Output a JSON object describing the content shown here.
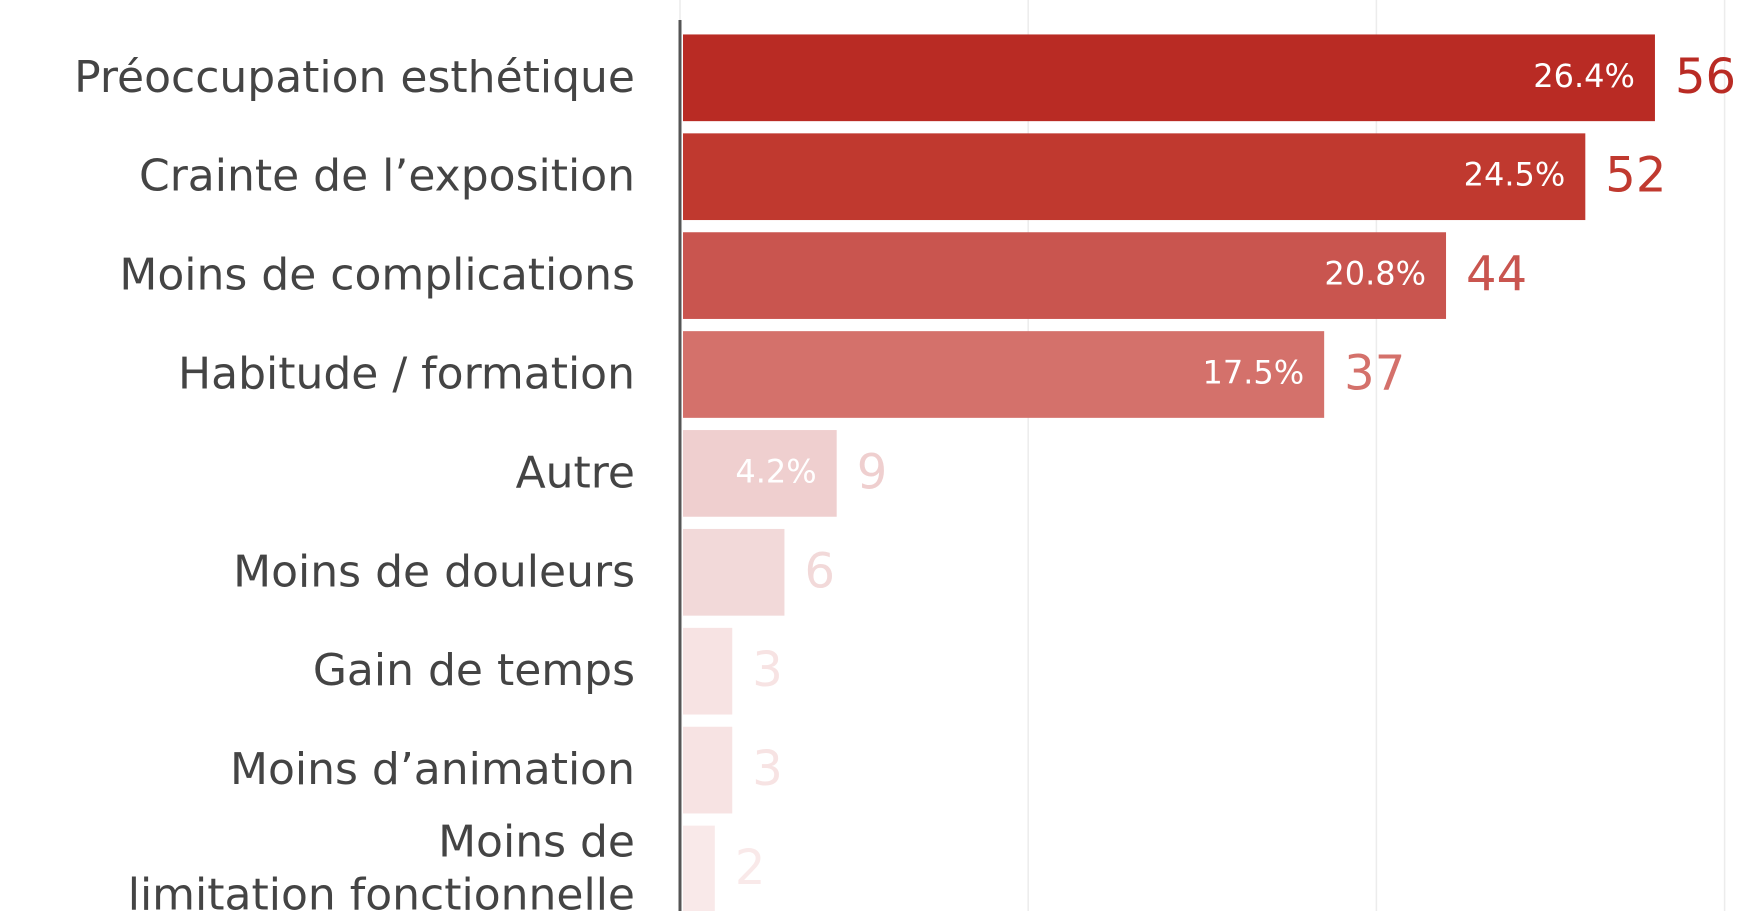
{
  "chart_data": {
    "type": "hbar",
    "categories": [
      "Préoccupation esthétique",
      "Crainte de l’exposition",
      "Moins de complications",
      "Habitude / formation",
      "Autre",
      "Moins de douleurs",
      "Gain de temps",
      "Moins d’animation",
      "Moins de\nlimitation fonctionnelle"
    ],
    "values": [
      56,
      52,
      44,
      37,
      9,
      6,
      3,
      3,
      2
    ],
    "percent_labels": [
      "26.4%",
      "24.5%",
      "20.8%",
      "17.5%",
      "4.2%"
    ],
    "colors": [
      "#b92b24",
      "#c0392f",
      "#c9554f",
      "#d4716b",
      "#efcfcf",
      "#f2d9d9",
      "#f7e3e3",
      "#f7e3e3",
      "#f9e9e9"
    ],
    "xlim": [
      0,
      61
    ],
    "xticks": [
      0,
      20,
      40,
      60
    ],
    "grid": true
  }
}
